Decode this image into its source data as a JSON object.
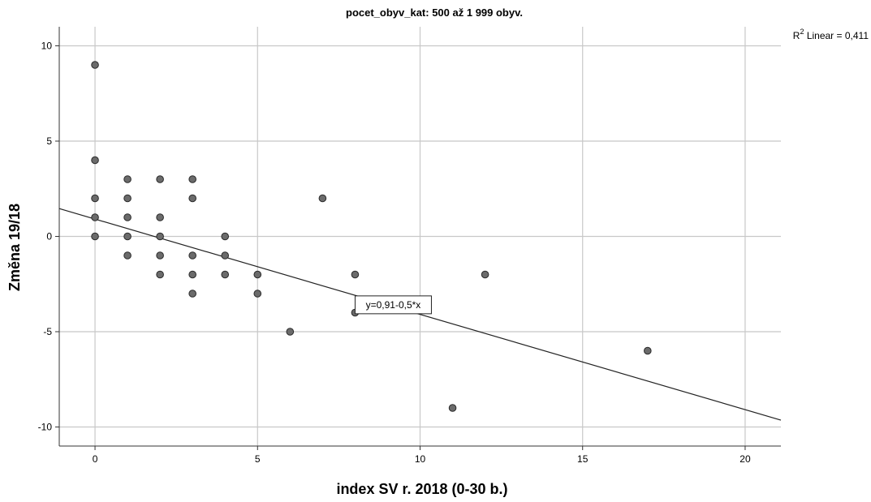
{
  "chart_data": {
    "type": "scatter",
    "title": "pocet_obyv_kat: 500 až 1 999 obyv.",
    "xlabel": "index SV r. 2018 (0-30 b.)",
    "ylabel": "Změna 19/18",
    "xlim": [
      -1.1,
      21.1
    ],
    "ylim": [
      -11.0,
      11.0
    ],
    "x_ticks": [
      0,
      5,
      10,
      15,
      20
    ],
    "y_ticks": [
      10,
      5,
      0,
      -5,
      -10
    ],
    "grid": true,
    "point_color": "#6b6b6b",
    "points": [
      {
        "x": 0,
        "y": 9
      },
      {
        "x": 0,
        "y": 4
      },
      {
        "x": 0,
        "y": 2
      },
      {
        "x": 0,
        "y": 1
      },
      {
        "x": 0,
        "y": 0
      },
      {
        "x": 1,
        "y": 3
      },
      {
        "x": 1,
        "y": 2
      },
      {
        "x": 1,
        "y": 1
      },
      {
        "x": 1,
        "y": 0
      },
      {
        "x": 1,
        "y": -1
      },
      {
        "x": 2,
        "y": 3
      },
      {
        "x": 2,
        "y": 1
      },
      {
        "x": 2,
        "y": 0
      },
      {
        "x": 2,
        "y": -1
      },
      {
        "x": 2,
        "y": -2
      },
      {
        "x": 3,
        "y": 3
      },
      {
        "x": 3,
        "y": 2
      },
      {
        "x": 3,
        "y": -1
      },
      {
        "x": 3,
        "y": -2
      },
      {
        "x": 3,
        "y": -3
      },
      {
        "x": 4,
        "y": 0
      },
      {
        "x": 4,
        "y": -1
      },
      {
        "x": 4,
        "y": -2
      },
      {
        "x": 5,
        "y": -2
      },
      {
        "x": 5,
        "y": -3
      },
      {
        "x": 6,
        "y": -5
      },
      {
        "x": 7,
        "y": 2
      },
      {
        "x": 8,
        "y": -2
      },
      {
        "x": 8,
        "y": -4
      },
      {
        "x": 11,
        "y": -9
      },
      {
        "x": 12,
        "y": -2
      },
      {
        "x": 17,
        "y": -6
      }
    ],
    "fit_line": {
      "intercept": 0.91,
      "slope": -0.5
    },
    "equation_label": "y=0,91-0,5*x",
    "equation_anchor_x": 9,
    "r2_label": {
      "prefix": "R",
      "sup": "2",
      "text": " Linear = 0,411"
    }
  }
}
